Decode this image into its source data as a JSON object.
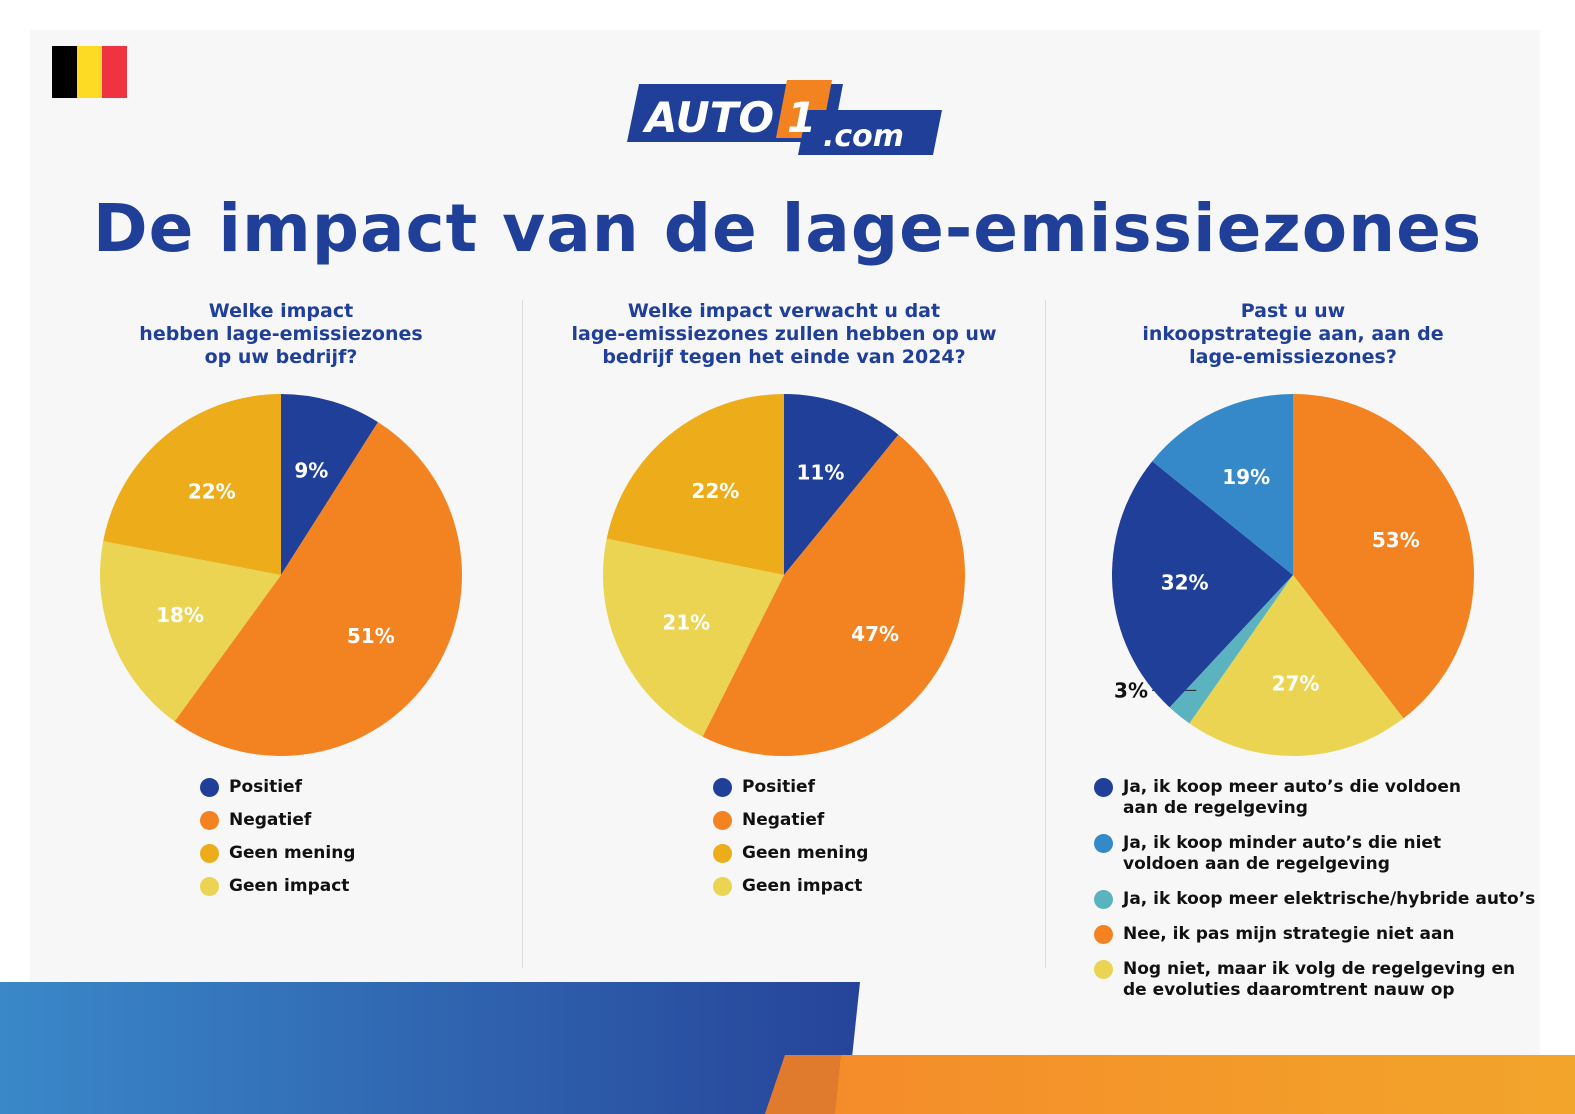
{
  "header": {
    "logo_text": "AUTO1.com",
    "title": "De impact van de lage-emissiezones"
  },
  "colors": {
    "dark_blue": "#1f3f99",
    "orange": "#f38321",
    "gold": "#edac1a",
    "light_yellow": "#ecd453",
    "light_blue": "#3589c9",
    "teal": "#5bb3c0",
    "flag": [
      "#000000",
      "#fdda24",
      "#ef3340"
    ]
  },
  "chart_data": [
    {
      "type": "pie",
      "title": "Welke impact\nhebben lage-emissiezones\nop uw bedrijf?",
      "slices": [
        {
          "label": "Positief",
          "value": 9,
          "display": "9%",
          "color": "#1f3f99"
        },
        {
          "label": "Negatief",
          "value": 51,
          "display": "51%",
          "color": "#f38321"
        },
        {
          "label": "Geen impact",
          "value": 18,
          "display": "18%",
          "color": "#ecd453"
        },
        {
          "label": "Geen mening",
          "value": 22,
          "display": "22%",
          "color": "#edac1a"
        }
      ],
      "legend": [
        {
          "label": "Positief",
          "color": "#1f3f99"
        },
        {
          "label": "Negatief",
          "color": "#f38321"
        },
        {
          "label": "Geen mening",
          "color": "#edac1a"
        },
        {
          "label": "Geen impact",
          "color": "#ecd453"
        }
      ],
      "legend_position": "bottom"
    },
    {
      "type": "pie",
      "title": "Welke impact verwacht u dat\nlage-emissiezones zullen hebben op uw\nbedrijf tegen het einde van 2024?",
      "slices": [
        {
          "label": "Positief",
          "value": 11,
          "display": "11%",
          "color": "#1f3f99"
        },
        {
          "label": "Negatief",
          "value": 47,
          "display": "47%",
          "color": "#f38321"
        },
        {
          "label": "Geen impact",
          "value": 21,
          "display": "21%",
          "color": "#ecd453"
        },
        {
          "label": "Geen mening",
          "value": 22,
          "display": "22%",
          "color": "#edac1a"
        }
      ],
      "legend": [
        {
          "label": "Positief",
          "color": "#1f3f99"
        },
        {
          "label": "Negatief",
          "color": "#f38321"
        },
        {
          "label": "Geen mening",
          "color": "#edac1a"
        },
        {
          "label": "Geen impact",
          "color": "#ecd453"
        }
      ],
      "legend_position": "bottom"
    },
    {
      "type": "pie",
      "title": "Past u uw\ninkoopstrategie aan, aan de\nlage-emissiezones?",
      "slices": [
        {
          "label": "Nee, ik pas mijn strategie niet aan",
          "value": 53,
          "display": "53%",
          "color": "#f38321"
        },
        {
          "label": "Nog niet, maar ik volg de regelgeving en de evoluties daaromtrent nauw op",
          "value": 27,
          "display": "27%",
          "color": "#ecd453"
        },
        {
          "label": "Ja, ik koop meer elektrische/hybride auto’s",
          "value": 3,
          "display": "3%",
          "color": "#5bb3c0"
        },
        {
          "label": "Ja, ik koop meer auto’s die voldoen aan de regelgeving",
          "value": 32,
          "display": "32%",
          "color": "#1f3f99"
        },
        {
          "label": "Ja, ik koop minder auto’s die niet voldoen aan de regelgeving",
          "value": 19,
          "display": "19%",
          "color": "#3589c9"
        }
      ],
      "legend": [
        {
          "label": "Ja, ik koop meer auto’s die voldoen\naan de regelgeving",
          "color": "#1f3f99"
        },
        {
          "label": "Ja, ik koop minder auto’s die niet\nvoldoen aan de regelgeving",
          "color": "#3589c9"
        },
        {
          "label": "Ja, ik koop meer elektrische/hybride auto’s",
          "color": "#5bb3c0"
        },
        {
          "label": "Nee, ik pas mijn strategie niet aan",
          "color": "#f38321"
        },
        {
          "label": "Nog niet, maar ik volg de regelgeving en\nde evoluties daaromtrent nauw op",
          "color": "#ecd453"
        }
      ],
      "legend_position": "bottom"
    }
  ]
}
